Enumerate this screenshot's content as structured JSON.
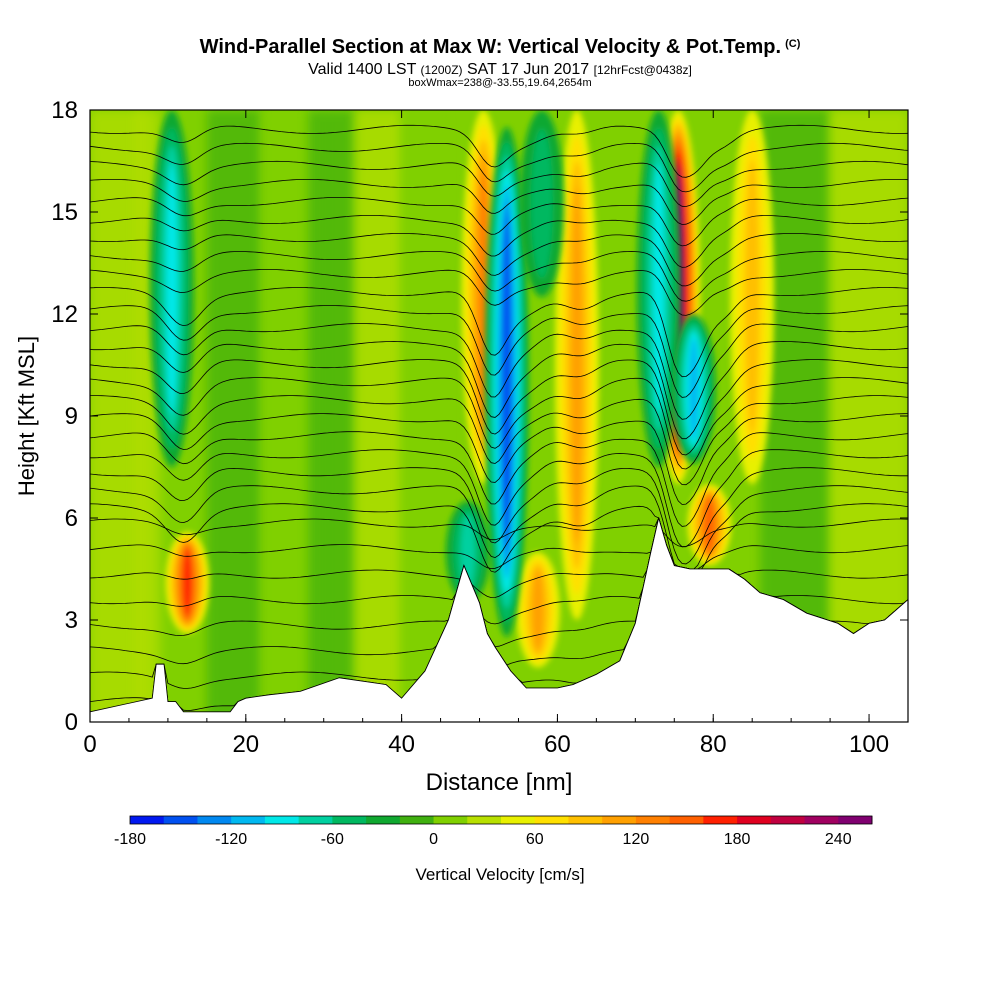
{
  "titles": {
    "main": "Wind-Parallel Section at Max W: Vertical Velocity & Pot.Temp.",
    "copyright": "(C)",
    "valid_prefix": "Valid 1400 LST",
    "valid_utc": "(1200Z)",
    "valid_date": "SAT 17 Jun 2017",
    "forecast": "[12hrFcst@0438z]",
    "box_info": "boxWmax=238@-33.55,19.64,2654m"
  },
  "chart_data": {
    "type": "contour-section",
    "title": "Wind-Parallel Section at Max W: Vertical Velocity & Pot.Temp.",
    "xlabel": "Distance [nm]",
    "ylabel": "Height [Kft MSL]",
    "xlim": [
      0,
      105
    ],
    "ylim": [
      0,
      18
    ],
    "xticks": [
      0,
      20,
      40,
      60,
      80,
      100
    ],
    "yticks": [
      0,
      3,
      6,
      9,
      12,
      15,
      18
    ],
    "colorbar": {
      "label": "Vertical Velocity [cm/s]",
      "min": -180,
      "max": 260,
      "step": 20,
      "tick_values": [
        -180,
        -120,
        -60,
        0,
        60,
        120,
        180,
        240
      ],
      "colors": [
        "#0018f0",
        "#0050f0",
        "#0088f0",
        "#00b8f0",
        "#00e8e8",
        "#00d0a0",
        "#00b860",
        "#10a830",
        "#40b010",
        "#80d000",
        "#b8e000",
        "#e8f000",
        "#ffe000",
        "#ffc000",
        "#ffa000",
        "#ff8000",
        "#ff6000",
        "#ff2000",
        "#e00020",
        "#c00040",
        "#a00060",
        "#800070"
      ]
    },
    "max_w_cm_s": 238,
    "terrain_kft": [
      [
        0,
        0.3
      ],
      [
        8,
        0.7
      ],
      [
        8.5,
        1.7
      ],
      [
        9.5,
        1.7
      ],
      [
        10,
        0.6
      ],
      [
        11,
        0.6
      ],
      [
        12,
        0.3
      ],
      [
        18,
        0.3
      ],
      [
        19,
        0.6
      ],
      [
        20,
        0.7
      ],
      [
        23,
        0.8
      ],
      [
        27,
        0.9
      ],
      [
        32,
        1.3
      ],
      [
        38,
        1.1
      ],
      [
        40,
        0.7
      ],
      [
        43,
        1.5
      ],
      [
        46,
        3.0
      ],
      [
        48,
        4.6
      ],
      [
        50,
        3.5
      ],
      [
        51,
        2.6
      ],
      [
        52,
        2.2
      ],
      [
        54,
        1.5
      ],
      [
        56,
        1.0
      ],
      [
        60,
        1.0
      ],
      [
        62,
        1.1
      ],
      [
        65,
        1.4
      ],
      [
        68,
        1.8
      ],
      [
        70,
        2.9
      ],
      [
        72,
        5.0
      ],
      [
        73,
        6.0
      ],
      [
        74,
        5.2
      ],
      [
        75,
        4.6
      ],
      [
        77,
        4.5
      ],
      [
        82,
        4.5
      ],
      [
        84,
        4.2
      ],
      [
        86,
        3.8
      ],
      [
        89,
        3.6
      ],
      [
        92,
        3.2
      ],
      [
        96,
        2.9
      ],
      [
        98,
        2.6
      ],
      [
        100,
        2.9
      ],
      [
        102,
        3.0
      ],
      [
        105,
        3.6
      ]
    ],
    "updraft_cores": [
      {
        "x": 12.5,
        "ytop": 5.6,
        "ybot": 2.6,
        "w_cm_s": 140
      },
      {
        "x": 50.5,
        "ytop": 18,
        "ybot": 7.0,
        "w_cm_s": 100
      },
      {
        "x": 57.5,
        "ytop": 5.0,
        "ybot": 1.6,
        "w_cm_s": 80
      },
      {
        "x": 62.5,
        "ytop": 18,
        "ybot": 3.0,
        "w_cm_s": 80
      },
      {
        "x": 75.5,
        "ytop": 18,
        "ybot": 7.0,
        "w_cm_s": 238
      },
      {
        "x": 79.5,
        "ytop": 7.0,
        "ybot": 4.6,
        "w_cm_s": 120
      },
      {
        "x": 85,
        "ytop": 18,
        "ybot": 7.0,
        "w_cm_s": 60
      }
    ],
    "downdraft_cores": [
      {
        "x": 53.5,
        "ytop": 17.5,
        "ybot": 2.5,
        "w_cm_s": -150
      },
      {
        "x": 58.0,
        "ytop": 18,
        "ybot": 12.5,
        "w_cm_s": -40
      },
      {
        "x": 73.0,
        "ytop": 18,
        "ybot": 7.5,
        "w_cm_s": -90
      },
      {
        "x": 77.5,
        "ytop": 12.0,
        "ybot": 7.6,
        "w_cm_s": -110
      },
      {
        "x": 10.5,
        "ytop": 18,
        "ybot": 7.5,
        "w_cm_s": -80
      },
      {
        "x": 48.5,
        "ytop": 6.5,
        "ybot": 3.5,
        "w_cm_s": -60
      }
    ],
    "theta_contour_count": 30
  }
}
